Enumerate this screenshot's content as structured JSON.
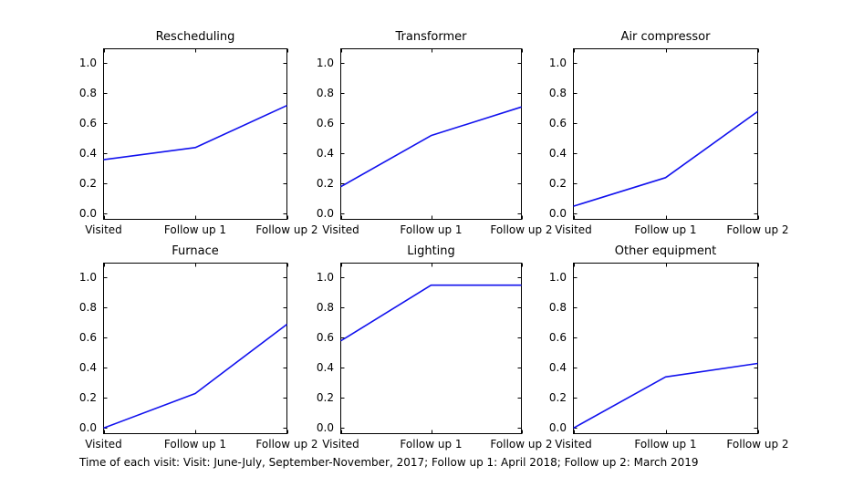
{
  "chart_data": {
    "type": "line",
    "layout": "2x3-subplot-grid",
    "categories": [
      "Visited",
      "Follow up 1",
      "Follow up 2"
    ],
    "yticks": [
      "0.0",
      "0.2",
      "0.4",
      "0.6",
      "0.8",
      "1.0"
    ],
    "ytick_values": [
      0.0,
      0.2,
      0.4,
      0.6,
      0.8,
      1.0
    ],
    "ylim": [
      -0.04,
      1.1
    ],
    "grid": false,
    "legend": "none",
    "line_color": "#1111ee",
    "axis_color": "#000000",
    "subplots": [
      {
        "title": "Rescheduling",
        "values": [
          0.36,
          0.44,
          0.72
        ]
      },
      {
        "title": "Transformer",
        "values": [
          0.18,
          0.52,
          0.71
        ]
      },
      {
        "title": "Air compressor",
        "values": [
          0.05,
          0.24,
          0.68
        ]
      },
      {
        "title": "Furnace",
        "values": [
          0.0,
          0.23,
          0.69
        ]
      },
      {
        "title": "Lighting",
        "values": [
          0.58,
          0.95,
          0.95
        ]
      },
      {
        "title": "Other equipment",
        "values": [
          0.0,
          0.34,
          0.43
        ]
      }
    ],
    "caption": "Time of each visit: Visit: June-July, September-November, 2017; Follow up 1: April 2018; Follow up 2: March 2019"
  }
}
